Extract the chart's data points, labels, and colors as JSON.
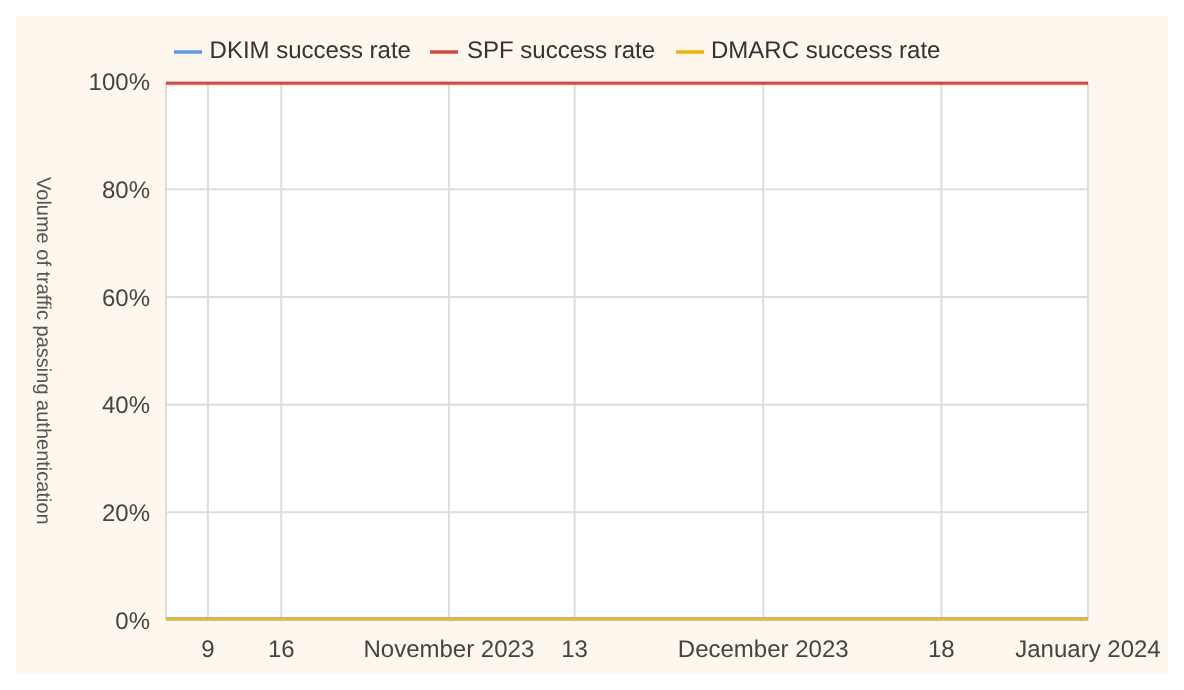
{
  "chart_data": {
    "type": "line",
    "ylabel": "Volume of traffic passing authentication",
    "series": [
      {
        "name": "DKIM success rate",
        "color": "#5b9bf0"
      },
      {
        "name": "SPF success rate",
        "color": "#d9483b",
        "x": [
          "2023-10-05",
          "2024-01-01"
        ],
        "values": [
          100,
          100
        ]
      },
      {
        "name": "DMARC success rate",
        "color": "#f2b705",
        "x": [
          "2023-10-05",
          "2024-01-01"
        ],
        "values": [
          0,
          0
        ]
      }
    ],
    "xlim": [
      "2023-10-05",
      "2024-01-01"
    ],
    "xticks": [
      {
        "value": "2023-10-09",
        "label": "9"
      },
      {
        "value": "2023-10-16",
        "label": "16"
      },
      {
        "value": "2023-11-01",
        "label": "November 2023"
      },
      {
        "value": "2023-11-13",
        "label": "13"
      },
      {
        "value": "2023-12-01",
        "label": "December 2023"
      },
      {
        "value": "2023-12-18",
        "label": "18"
      },
      {
        "value": "2024-01-01",
        "label": "January 2024"
      }
    ],
    "ylim": [
      0,
      100
    ],
    "yticks": [
      {
        "value": 0,
        "label": "0%"
      },
      {
        "value": 20,
        "label": "20%"
      },
      {
        "value": 40,
        "label": "40%"
      },
      {
        "value": 60,
        "label": "60%"
      },
      {
        "value": 80,
        "label": "80%"
      },
      {
        "value": 100,
        "label": "100%"
      }
    ],
    "grid": true,
    "legend": "top",
    "marker": "none",
    "line_style": "solid"
  }
}
